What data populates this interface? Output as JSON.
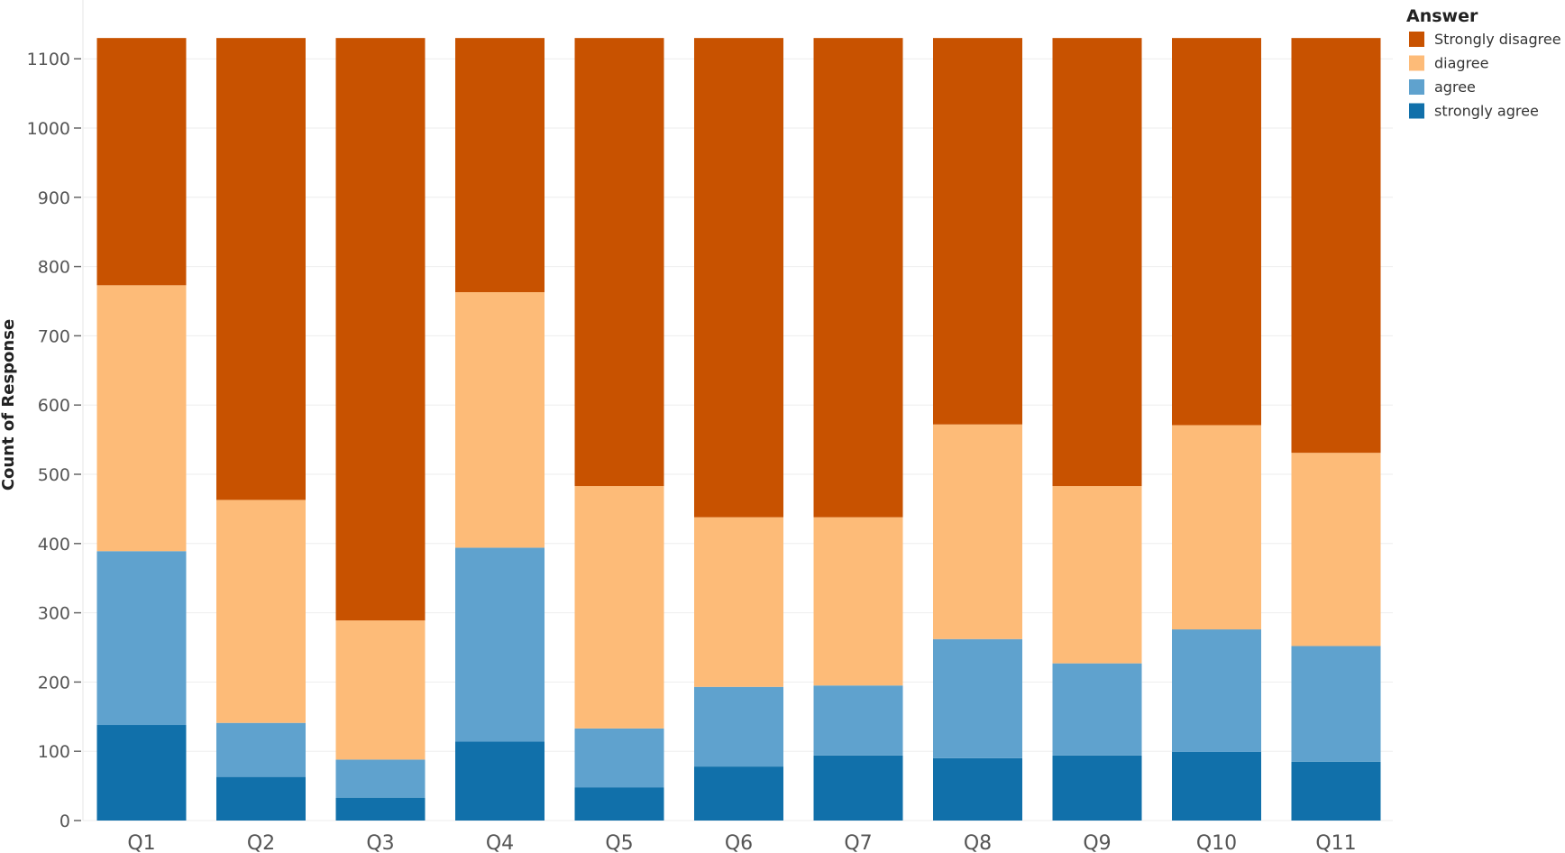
{
  "chart_data": {
    "type": "bar",
    "stacked": true,
    "title": "",
    "xlabel": "",
    "ylabel": "Count of Response",
    "ylim": [
      0,
      1130
    ],
    "yticks": [
      0,
      100,
      200,
      300,
      400,
      500,
      600,
      700,
      800,
      900,
      1000,
      1100
    ],
    "grid": true,
    "legend_title": "Answer",
    "legend_position": "top-right",
    "categories": [
      "Q1",
      "Q2",
      "Q3",
      "Q4",
      "Q5",
      "Q6",
      "Q7",
      "Q8",
      "Q9",
      "Q10",
      "Q11"
    ],
    "series": [
      {
        "name": "strongly agree",
        "color": "#1170aa",
        "values": [
          138,
          63,
          33,
          114,
          48,
          78,
          94,
          90,
          94,
          99,
          85
        ]
      },
      {
        "name": "agree",
        "color": "#5fa2ce",
        "values": [
          251,
          78,
          55,
          280,
          85,
          115,
          101,
          172,
          133,
          177,
          167
        ]
      },
      {
        "name": "diagree",
        "color": "#fdbb78",
        "values": [
          384,
          322,
          201,
          369,
          350,
          245,
          243,
          310,
          256,
          295,
          279
        ]
      },
      {
        "name": "Strongly disagree",
        "color": "#c85200",
        "values": [
          357,
          667,
          841,
          367,
          647,
          692,
          692,
          558,
          647,
          559,
          599
        ]
      }
    ]
  }
}
